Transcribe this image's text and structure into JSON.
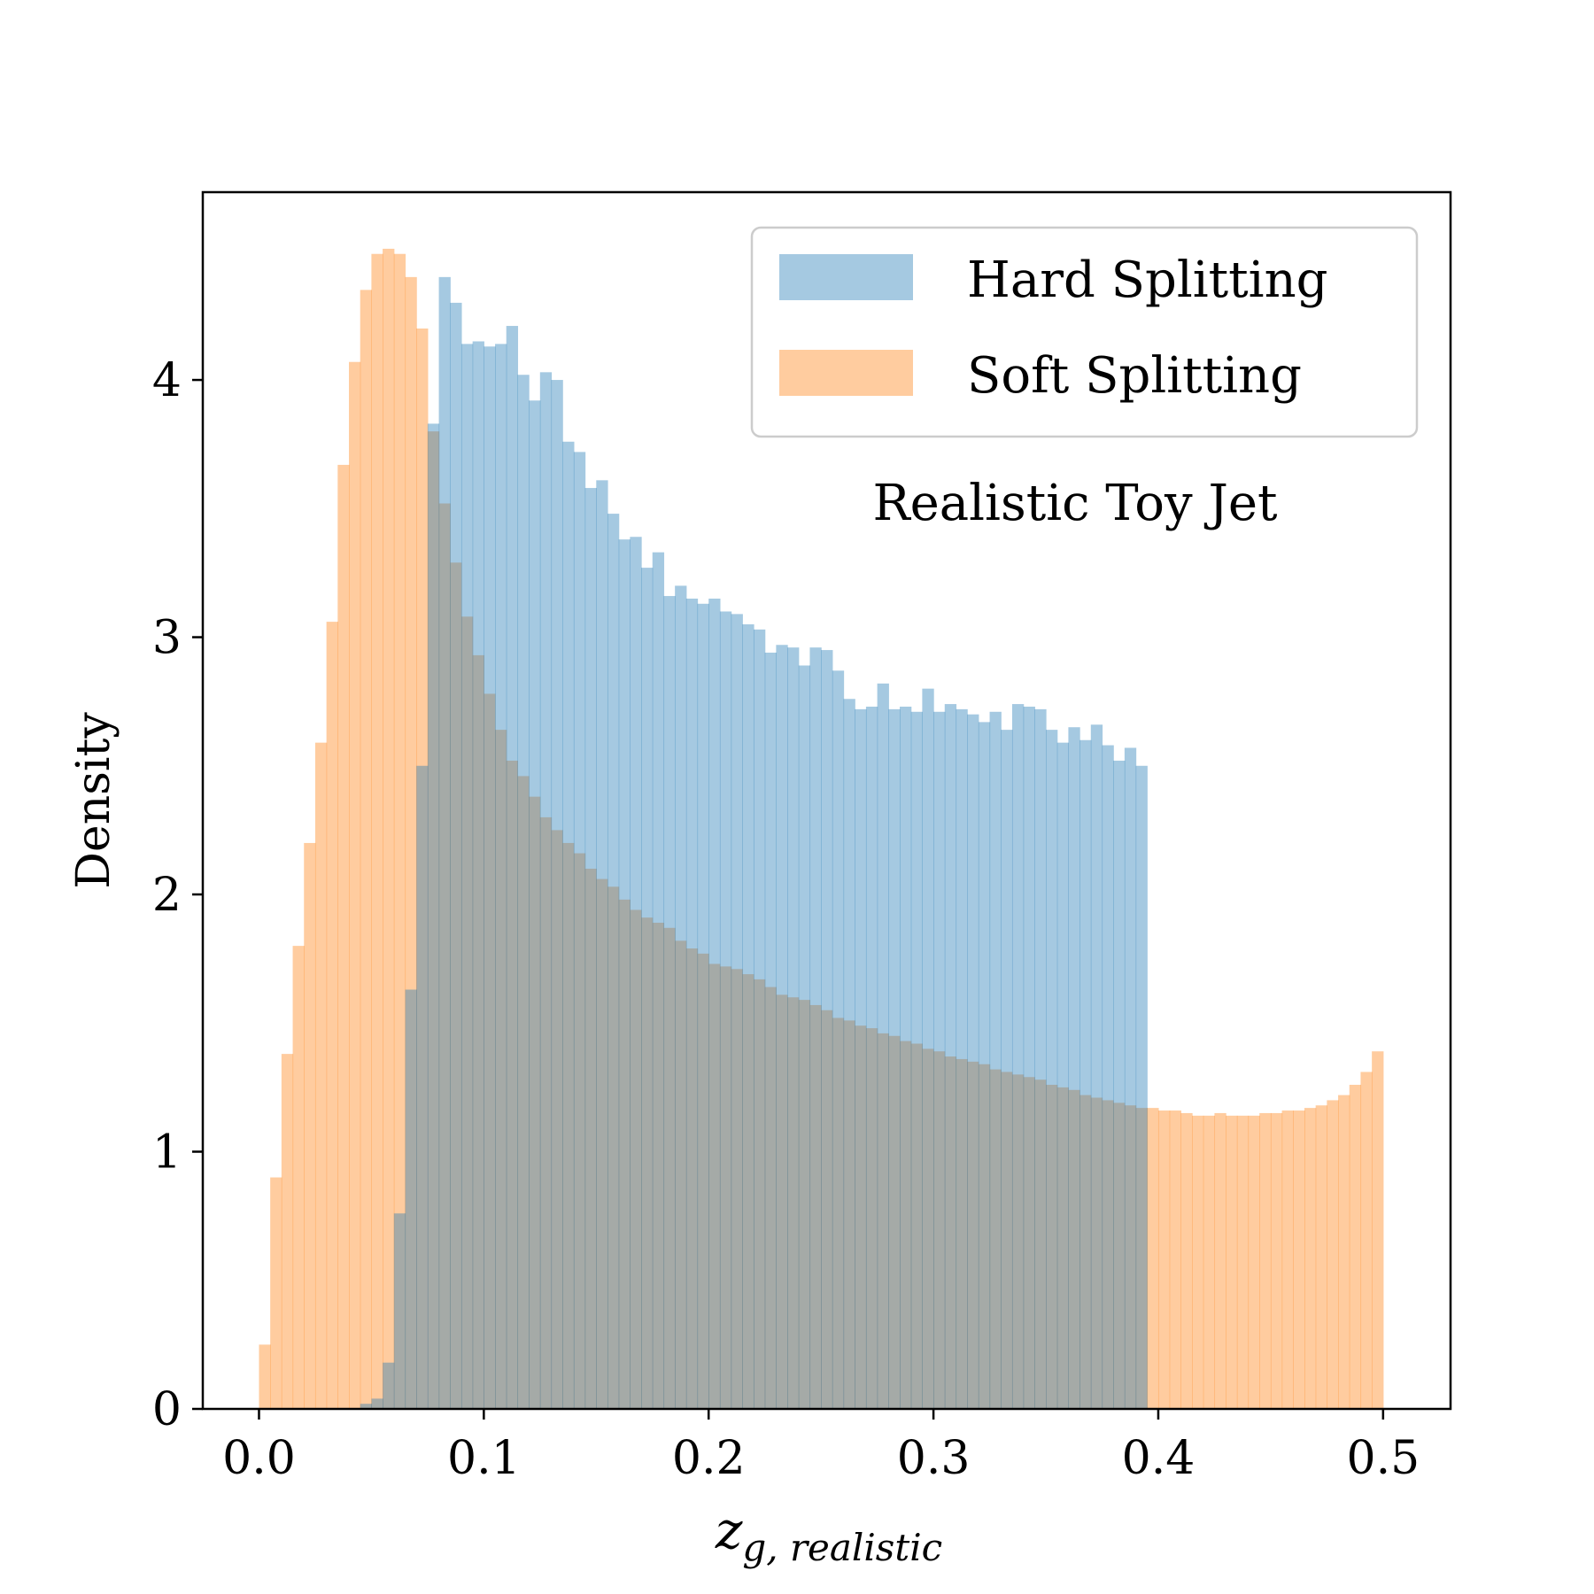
{
  "chart_data": {
    "type": "histogram",
    "title": "",
    "xlabel_main": "z",
    "xlabel_sub": "g, realistic",
    "ylabel": "Density",
    "xlim": [
      -0.025,
      0.53
    ],
    "ylim": [
      0,
      4.73
    ],
    "xticks": [
      0.0,
      0.1,
      0.2,
      0.3,
      0.4,
      0.5
    ],
    "xtick_labels": [
      "0.0",
      "0.1",
      "0.2",
      "0.3",
      "0.4",
      "0.5"
    ],
    "yticks": [
      0,
      1,
      2,
      3,
      4
    ],
    "ytick_labels": [
      "0",
      "1",
      "2",
      "3",
      "4"
    ],
    "annotation": "Realistic Toy Jet",
    "legend_position": "top-right",
    "bin_width": 0.005,
    "series": [
      {
        "name": "Hard Splitting",
        "color": "#1f77b4",
        "alpha": 0.4,
        "start": 0.045,
        "values": [
          0.02,
          0.04,
          0.18,
          0.76,
          1.63,
          2.5,
          3.83,
          4.4,
          4.3,
          4.14,
          4.15,
          4.13,
          4.14,
          4.21,
          4.02,
          3.92,
          4.03,
          4.0,
          3.76,
          3.72,
          3.58,
          3.61,
          3.48,
          3.38,
          3.39,
          3.27,
          3.33,
          3.16,
          3.2,
          3.15,
          3.13,
          3.15,
          3.1,
          3.09,
          3.05,
          3.03,
          2.94,
          2.97,
          2.96,
          2.89,
          2.96,
          2.95,
          2.87,
          2.76,
          2.72,
          2.73,
          2.82,
          2.72,
          2.73,
          2.71,
          2.8,
          2.71,
          2.74,
          2.72,
          2.7,
          2.67,
          2.71,
          2.64,
          2.74,
          2.73,
          2.72,
          2.64,
          2.59,
          2.65,
          2.6,
          2.66,
          2.58,
          2.52,
          2.57,
          2.5
        ]
      },
      {
        "name": "Soft Splitting",
        "color": "#ff7f0e",
        "alpha": 0.4,
        "start": 0.0,
        "values": [
          0.25,
          0.9,
          1.38,
          1.8,
          2.2,
          2.59,
          3.06,
          3.67,
          4.07,
          4.35,
          4.49,
          4.51,
          4.49,
          4.4,
          4.2,
          3.8,
          3.52,
          3.29,
          3.08,
          2.93,
          2.78,
          2.64,
          2.52,
          2.46,
          2.38,
          2.3,
          2.25,
          2.2,
          2.16,
          2.1,
          2.06,
          2.03,
          1.98,
          1.94,
          1.91,
          1.89,
          1.87,
          1.82,
          1.79,
          1.77,
          1.73,
          1.72,
          1.71,
          1.69,
          1.67,
          1.64,
          1.61,
          1.6,
          1.59,
          1.57,
          1.55,
          1.52,
          1.51,
          1.49,
          1.48,
          1.46,
          1.45,
          1.43,
          1.42,
          1.4,
          1.39,
          1.37,
          1.36,
          1.35,
          1.34,
          1.32,
          1.31,
          1.3,
          1.29,
          1.28,
          1.26,
          1.25,
          1.24,
          1.22,
          1.21,
          1.2,
          1.19,
          1.18,
          1.17,
          1.17,
          1.16,
          1.16,
          1.15,
          1.14,
          1.14,
          1.15,
          1.14,
          1.14,
          1.14,
          1.15,
          1.15,
          1.16,
          1.16,
          1.17,
          1.18,
          1.2,
          1.22,
          1.26,
          1.31,
          1.39
        ]
      }
    ]
  }
}
